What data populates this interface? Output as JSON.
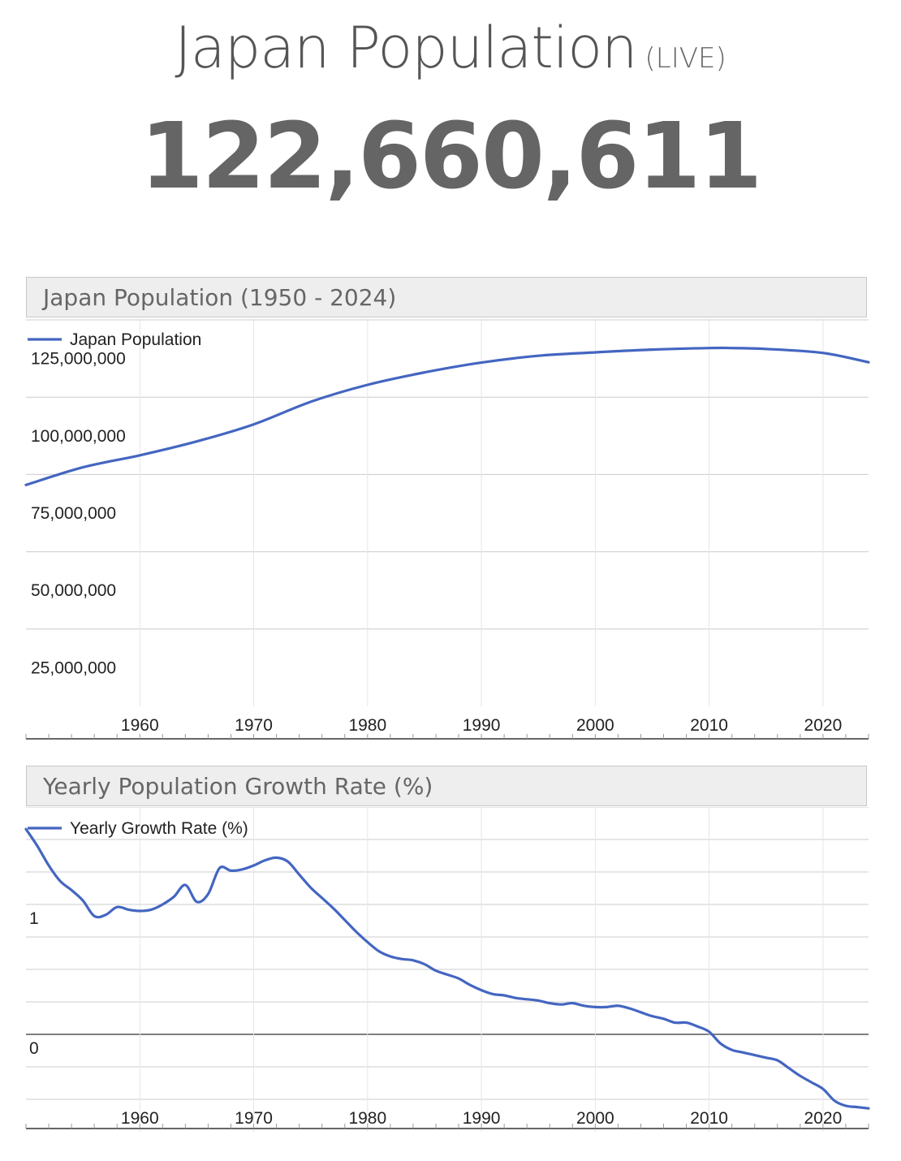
{
  "page": {
    "title": "Japan Population",
    "live_label": "(LIVE)",
    "counter": "122,660,611"
  },
  "colors": {
    "series": "#4466c1",
    "grid": "#cccccc",
    "axis": "#333333",
    "text": "#222222"
  },
  "chart_data": [
    {
      "type": "line",
      "title": "Japan Population (1950 - 2024)",
      "xlabel": "",
      "ylabel": "",
      "legend": {
        "label": "Japan Population",
        "placement": "top-left"
      },
      "series": [
        {
          "name": "Japan Population",
          "x": [
            1950,
            1955,
            1960,
            1965,
            1970,
            1975,
            1980,
            1985,
            1990,
            1995,
            2000,
            2005,
            2010,
            2012,
            2015,
            2020,
            2024
          ],
          "values": [
            84100000,
            89800000,
            93700000,
            98200000,
            103700000,
            111000000,
            116500000,
            120500000,
            123700000,
            125900000,
            127000000,
            127900000,
            128400000,
            128400000,
            128100000,
            126800000,
            123800000
          ]
        }
      ],
      "x_ticks": [
        "1960",
        "1970",
        "1980",
        "1990",
        "2000",
        "2010",
        "2020"
      ],
      "y_ticks": [
        "25,000,000",
        "50,000,000",
        "75,000,000",
        "100,000,000",
        "125,000,000"
      ],
      "xlim": [
        1950,
        2024
      ],
      "ylim": [
        12500000,
        137500000
      ],
      "grid": true
    },
    {
      "type": "line",
      "title": "Yearly Population Growth Rate (%)",
      "xlabel": "",
      "ylabel": "",
      "legend": {
        "label": "Yearly Growth Rate (%)",
        "placement": "top-left"
      },
      "series": [
        {
          "name": "Yearly Growth Rate (%)",
          "x": [
            1950,
            1951,
            1952,
            1953,
            1954,
            1955,
            1956,
            1957,
            1958,
            1959,
            1960,
            1961,
            1962,
            1963,
            1964,
            1965,
            1966,
            1967,
            1968,
            1969,
            1970,
            1971,
            1972,
            1973,
            1974,
            1975,
            1976,
            1977,
            1978,
            1979,
            1980,
            1981,
            1982,
            1983,
            1984,
            1985,
            1986,
            1987,
            1988,
            1989,
            1990,
            1991,
            1992,
            1993,
            1994,
            1995,
            1996,
            1997,
            1998,
            1999,
            2000,
            2001,
            2002,
            2003,
            2004,
            2005,
            2006,
            2007,
            2008,
            2009,
            2010,
            2011,
            2012,
            2013,
            2014,
            2015,
            2016,
            2017,
            2018,
            2019,
            2020,
            2021,
            2022,
            2023,
            2024
          ],
          "values": [
            1.58,
            1.45,
            1.3,
            1.18,
            1.11,
            1.03,
            0.91,
            0.92,
            0.98,
            0.96,
            0.95,
            0.96,
            1.0,
            1.06,
            1.15,
            1.02,
            1.08,
            1.28,
            1.26,
            1.27,
            1.3,
            1.34,
            1.36,
            1.33,
            1.23,
            1.13,
            1.05,
            0.97,
            0.88,
            0.79,
            0.71,
            0.64,
            0.6,
            0.58,
            0.57,
            0.54,
            0.49,
            0.46,
            0.43,
            0.38,
            0.34,
            0.31,
            0.3,
            0.28,
            0.27,
            0.26,
            0.24,
            0.23,
            0.24,
            0.22,
            0.21,
            0.21,
            0.22,
            0.2,
            0.17,
            0.14,
            0.12,
            0.09,
            0.09,
            0.06,
            0.02,
            -0.07,
            -0.12,
            -0.14,
            -0.16,
            -0.18,
            -0.2,
            -0.26,
            -0.32,
            -0.37,
            -0.42,
            -0.51,
            -0.55,
            -0.56,
            -0.57
          ]
        }
      ],
      "x_ticks": [
        "1960",
        "1970",
        "1980",
        "1990",
        "2000",
        "2010",
        "2020"
      ],
      "y_ticks": [
        "0",
        "1"
      ],
      "xlim": [
        1950,
        2024
      ],
      "ylim": [
        -0.75,
        1.75
      ],
      "grid": true
    }
  ]
}
